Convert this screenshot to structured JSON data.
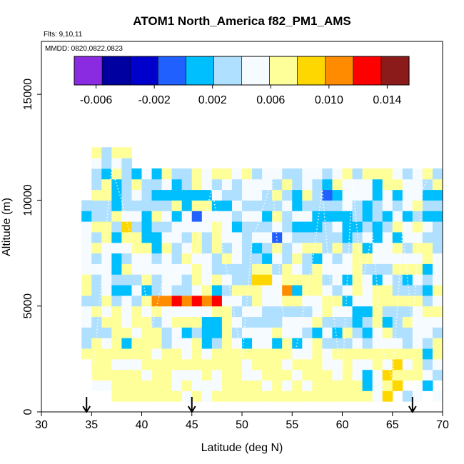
{
  "chart_data": {
    "type": "heatmap",
    "title": "ATOM1 North_America f82_PM1_AMS",
    "flights_label": "Flts: 9,10,11",
    "dates_label": "MMDD: 0820,0822,0823",
    "xlabel": "Latitude (deg N)",
    "ylabel": "Altitude (m)",
    "xlim": [
      30,
      70
    ],
    "ylim": [
      0,
      17500
    ],
    "x_ticks": [
      30,
      35,
      40,
      45,
      50,
      55,
      60,
      65,
      70
    ],
    "y_ticks": [
      0,
      5000,
      10000,
      15000
    ],
    "colorbar": {
      "min": -0.0075,
      "max": 0.0155,
      "ticks": [
        -0.006,
        -0.002,
        0.002,
        0.006,
        0.01,
        0.014
      ],
      "tick_labels": [
        "-0.006",
        "-0.002",
        "0.002",
        "0.006",
        "0.010",
        "0.014"
      ],
      "colors": [
        "#8a2be2",
        "#0000a0",
        "#0000cd",
        "#2060ff",
        "#00bfff",
        "#b0e0ff",
        "#f5fbff",
        "#ffff99",
        "#ffd700",
        "#ff8c00",
        "#ff0000",
        "#8b1a1a"
      ]
    },
    "marker_latitudes": [
      34.5,
      45,
      67
    ],
    "grid": false,
    "lat_bin_width": 1,
    "alt_bin_height": 500
  }
}
